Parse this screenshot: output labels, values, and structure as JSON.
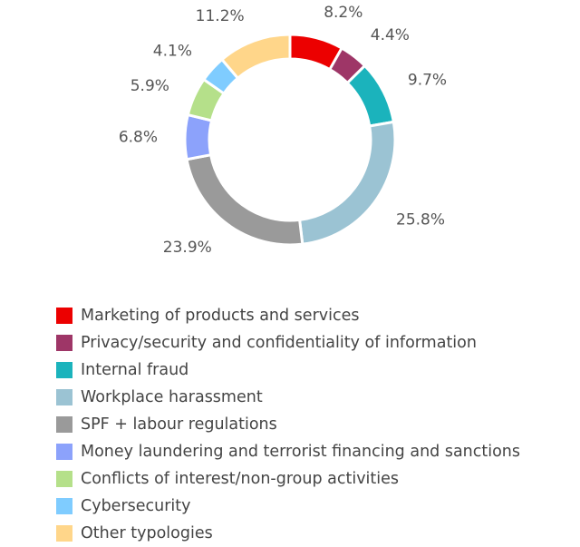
{
  "chart_data": {
    "type": "pie",
    "donut": true,
    "unit": "%",
    "categories": [
      "Marketing of products and services",
      "Privacy/security and confidentiality of information",
      "Internal fraud",
      "Workplace harassment",
      "SPF + labour regulations",
      "Money laundering and terrorist financing and sanctions",
      "Conflicts of interest/non-group activities",
      "Cybersecurity",
      "Other typologies"
    ],
    "values": [
      8.2,
      4.4,
      9.7,
      25.8,
      23.9,
      6.8,
      5.9,
      4.1,
      11.2
    ],
    "labels": [
      "8.2%",
      "4.4%",
      "9.7%",
      "25.8%",
      "23.9%",
      "6.8%",
      "5.9%",
      "4.1%",
      "11.2%"
    ],
    "colors": [
      "#ec0000",
      "#9e3667",
      "#1bb3bc",
      "#9bc3d3",
      "#9a9a9a",
      "#8ca2fb",
      "#b5e08a",
      "#7fccff",
      "#ffd68a"
    ],
    "legend_position": "bottom"
  }
}
